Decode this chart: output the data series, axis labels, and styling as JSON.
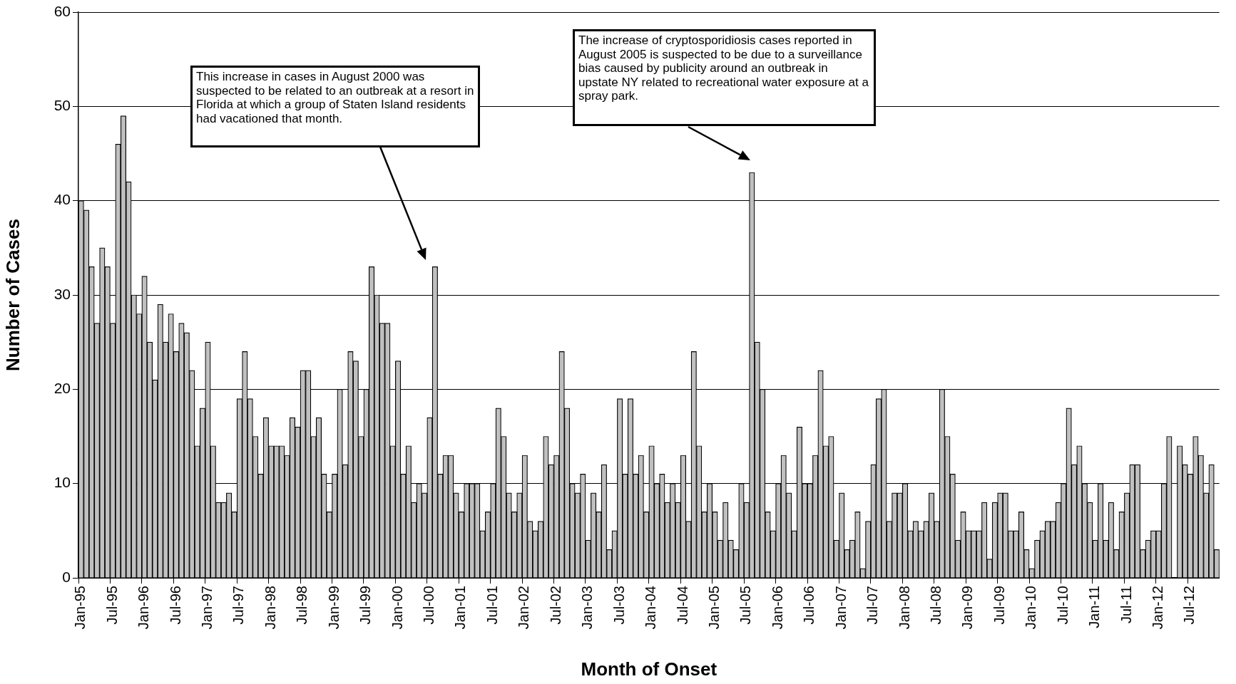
{
  "chart_data": {
    "type": "bar",
    "xlabel": "Month of Onset",
    "ylabel": "Number of Cases",
    "categories": [
      "Jan-95",
      null,
      null,
      null,
      null,
      null,
      "Jul-95",
      null,
      null,
      null,
      null,
      null,
      "Jan-96",
      null,
      null,
      null,
      null,
      null,
      "Jul-96",
      null,
      null,
      null,
      null,
      null,
      "Jan-97",
      null,
      null,
      null,
      null,
      null,
      "Jul-97",
      null,
      null,
      null,
      null,
      null,
      "Jan-98",
      null,
      null,
      null,
      null,
      null,
      "Jul-98",
      null,
      null,
      null,
      null,
      null,
      "Jan-99",
      null,
      null,
      null,
      null,
      null,
      "Jul-99",
      null,
      null,
      null,
      null,
      null,
      "Jan-00",
      null,
      null,
      null,
      null,
      null,
      "Jul-00",
      null,
      null,
      null,
      null,
      null,
      "Jan-01",
      null,
      null,
      null,
      null,
      null,
      "Jul-01",
      null,
      null,
      null,
      null,
      null,
      "Jan-02",
      null,
      null,
      null,
      null,
      null,
      "Jul-02",
      null,
      null,
      null,
      null,
      null,
      "Jan-03",
      null,
      null,
      null,
      null,
      null,
      "Jul-03",
      null,
      null,
      null,
      null,
      null,
      "Jan-04",
      null,
      null,
      null,
      null,
      null,
      "Jul-04",
      null,
      null,
      null,
      null,
      null,
      "Jan-05",
      null,
      null,
      null,
      null,
      null,
      "Jul-05",
      null,
      null,
      null,
      null,
      null,
      "Jan-06",
      null,
      null,
      null,
      null,
      null,
      "Jul-06",
      null,
      null,
      null,
      null,
      null,
      "Jan-07",
      null,
      null,
      null,
      null,
      null,
      "Jul-07",
      null,
      null,
      null,
      null,
      null,
      "Jan-08",
      null,
      null,
      null,
      null,
      null,
      "Jul-08",
      null,
      null,
      null,
      null,
      null,
      "Jan-09",
      null,
      null,
      null,
      null,
      null,
      "Jul-09",
      null,
      null,
      null,
      null,
      null,
      "Jan-10",
      null,
      null,
      null,
      null,
      null,
      "Jul-10",
      null,
      null,
      null,
      null,
      null,
      "Jan-11",
      null,
      null,
      null,
      null,
      null,
      "Jul-11",
      null,
      null,
      null,
      null,
      null,
      "Jan-12",
      null,
      null,
      null,
      null,
      null,
      "Jul-12",
      null,
      null,
      null,
      null,
      null
    ],
    "values": [
      40,
      39,
      33,
      27,
      35,
      33,
      27,
      46,
      49,
      42,
      30,
      28,
      32,
      25,
      21,
      29,
      25,
      28,
      24,
      27,
      26,
      22,
      14,
      18,
      25,
      14,
      8,
      8,
      9,
      7,
      19,
      24,
      19,
      15,
      11,
      17,
      14,
      14,
      14,
      13,
      17,
      16,
      22,
      22,
      15,
      17,
      11,
      7,
      11,
      20,
      12,
      24,
      23,
      15,
      20,
      33,
      30,
      27,
      27,
      14,
      23,
      11,
      14,
      8,
      10,
      9,
      17,
      33,
      11,
      13,
      13,
      9,
      7,
      10,
      10,
      10,
      5,
      7,
      10,
      18,
      15,
      9,
      7,
      9,
      13,
      6,
      5,
      6,
      15,
      12,
      13,
      24,
      18,
      10,
      9,
      11,
      4,
      9,
      7,
      12,
      3,
      5,
      19,
      11,
      19,
      11,
      13,
      7,
      14,
      10,
      11,
      8,
      10,
      8,
      13,
      6,
      24,
      14,
      7,
      10,
      7,
      4,
      8,
      4,
      3,
      10,
      8,
      43,
      25,
      20,
      7,
      5,
      10,
      13,
      9,
      5,
      16,
      10,
      10,
      13,
      22,
      14,
      15,
      4,
      9,
      3,
      4,
      7,
      1,
      6,
      12,
      19,
      20,
      6,
      9,
      9,
      10,
      5,
      6,
      5,
      6,
      9,
      6,
      20,
      15,
      11,
      4,
      7,
      5,
      5,
      5,
      8,
      2,
      8,
      9,
      9,
      5,
      5,
      7,
      3,
      1,
      4,
      5,
      6,
      6,
      8,
      10,
      18,
      12,
      14,
      10,
      8,
      4,
      10,
      4,
      8,
      3,
      7,
      9,
      12,
      12,
      3,
      4,
      5,
      5,
      10,
      15,
      0,
      14,
      12,
      11,
      15,
      13,
      9,
      12,
      3
    ],
    "color": "#c0c0c0",
    "ylim": [
      0,
      60
    ],
    "yticks": [
      0,
      10,
      20,
      30,
      40,
      50,
      60
    ],
    "grid": "y",
    "annotations": [
      "This increase in cases in August 2000 was suspected to be related to an outbreak at a resort in Florida at which a group of Staten Island residents had vacationed that month.",
      "The increase of cryptosporidiosis cases reported in August 2005 is suspected to be due to a surveillance bias caused by publicity around an outbreak in upstate NY related to recreational water exposure at a spray park."
    ]
  }
}
